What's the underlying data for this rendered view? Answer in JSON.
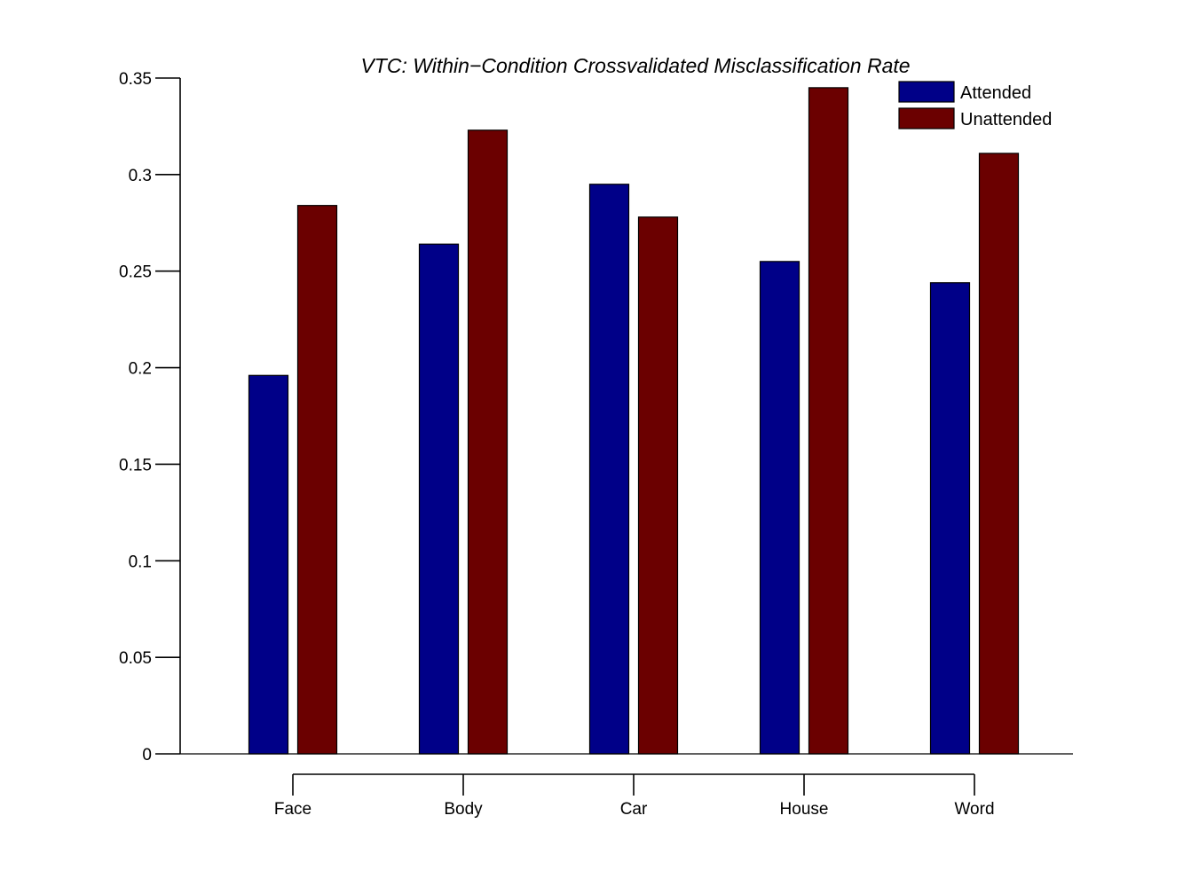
{
  "chart_data": {
    "type": "bar",
    "title": "VTC: Within−Condition Crossvalidated Misclassification Rate",
    "xlabel": "",
    "ylabel": "",
    "categories": [
      "Face",
      "Body",
      "Car",
      "House",
      "Word"
    ],
    "series": [
      {
        "name": "Attended",
        "color": "#000088",
        "values": [
          0.196,
          0.264,
          0.295,
          0.255,
          0.244
        ]
      },
      {
        "name": "Unattended",
        "color": "#6b0000",
        "values": [
          0.284,
          0.323,
          0.278,
          0.345,
          0.311
        ]
      }
    ],
    "ylim": [
      0,
      0.35
    ],
    "yticks": [
      0,
      0.05,
      0.1,
      0.15,
      0.2,
      0.25,
      0.3,
      0.35
    ],
    "ytick_labels": [
      "0",
      "0.05",
      "0.1",
      "0.15",
      "0.2",
      "0.25",
      "0.3",
      "0.35"
    ],
    "grid": false,
    "legend_position": "top-right"
  }
}
